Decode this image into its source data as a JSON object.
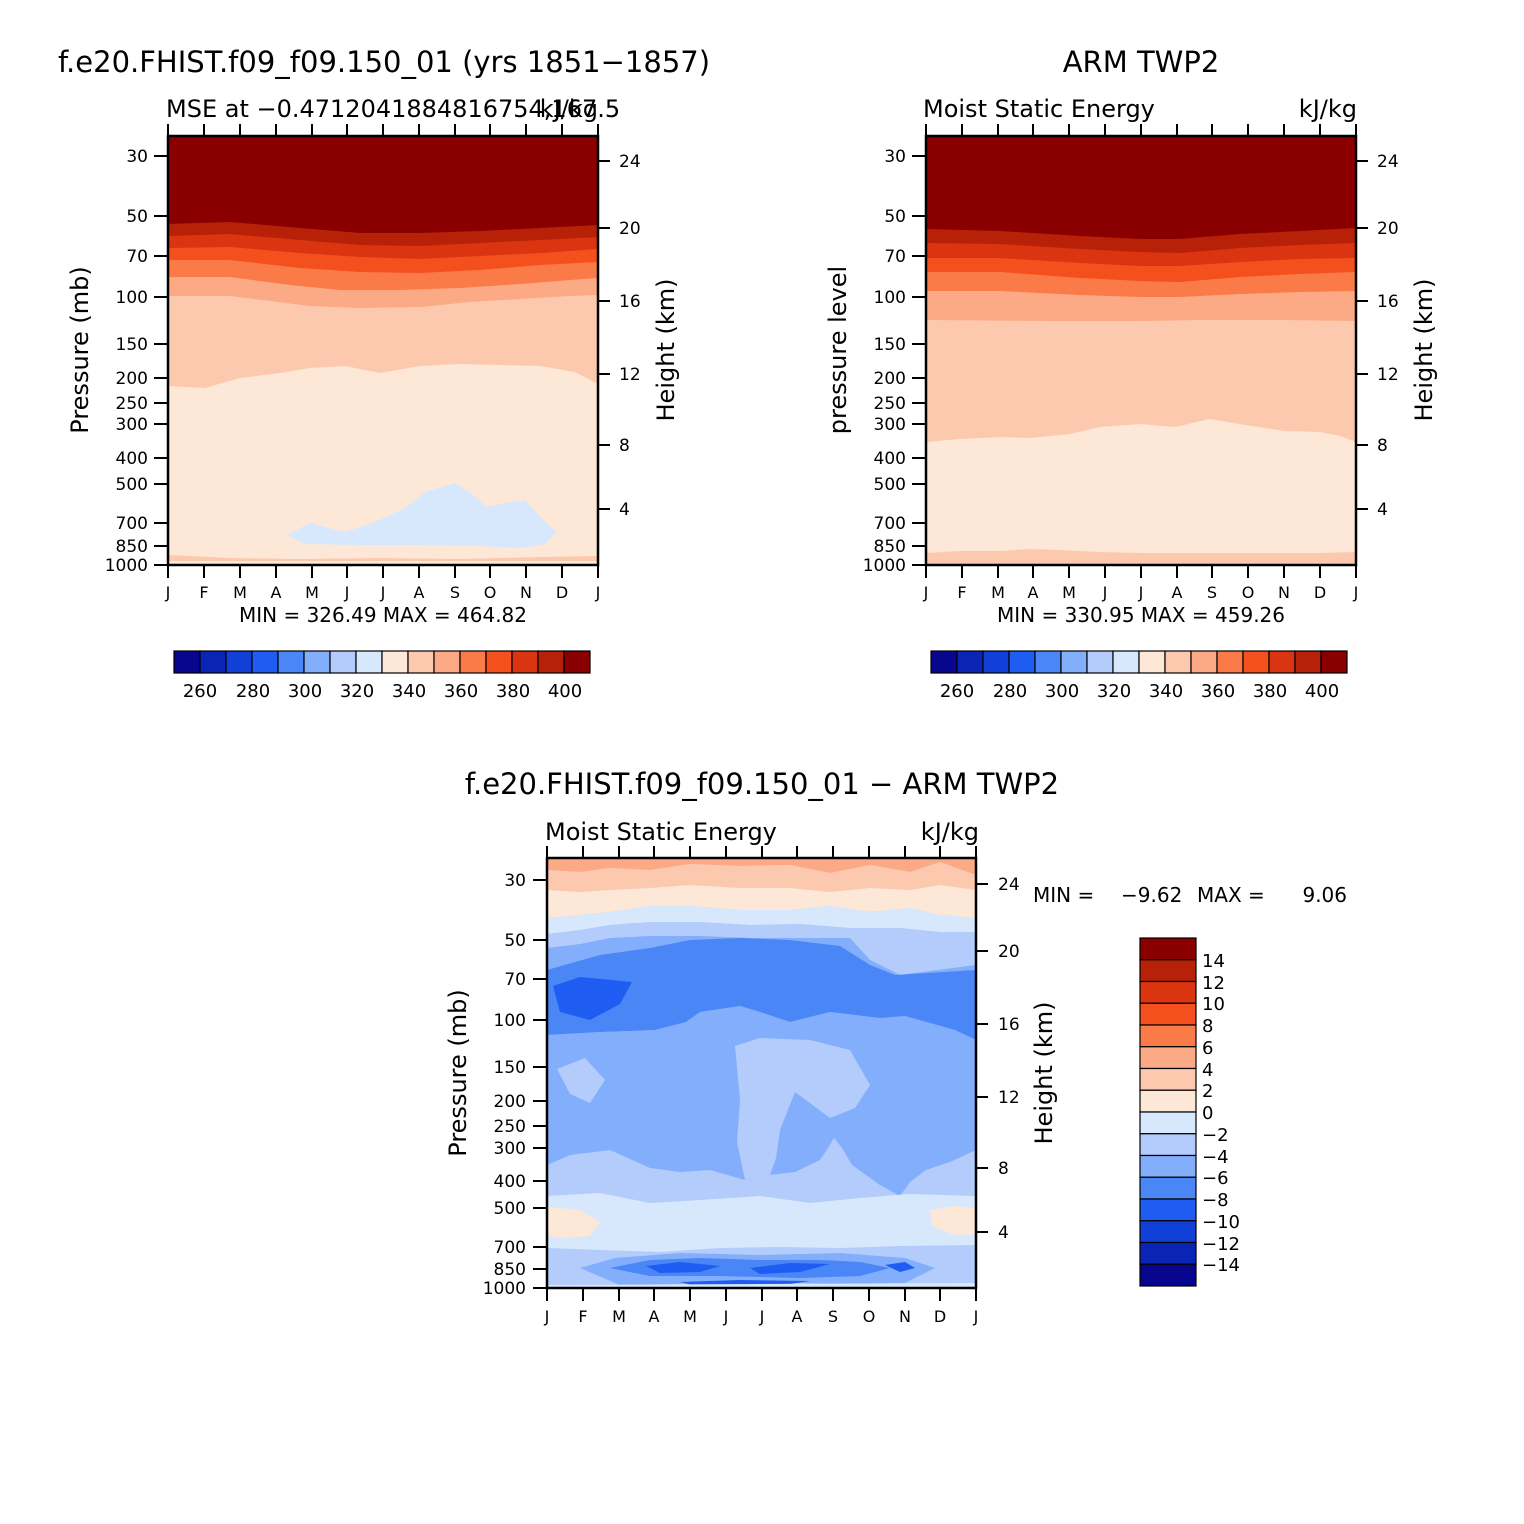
{
  "colors": {
    "scale": [
      "#08058f",
      "#0a25b5",
      "#1140d8",
      "#1e5cf2",
      "#4a86f6",
      "#82aefb",
      "#b4ccfc",
      "#d7e8fd",
      "#fde7d6",
      "#fdc9ae",
      "#fca985",
      "#fa7b47",
      "#f4501e",
      "#da3411",
      "#b72108",
      "#8a0000"
    ]
  },
  "top_left": {
    "title": "f.e20.FHIST.f09_f09.150_01 (yrs 1851-1857)",
    "subtitle_left": "MSE at -0.4712041884816754,167.5",
    "subtitle_right": "kJ/kg",
    "ylabel": "Pressure (mb)",
    "y2label": "Height (km)",
    "stats": "MIN = 326.49 MAX = 464.82"
  },
  "top_right": {
    "title": "ARM TWP2",
    "subtitle_left": "Moist Static Energy",
    "subtitle_right": "kJ/kg",
    "ylabel": "pressure level",
    "y2label": "Height (km)",
    "stats": "MIN = 330.95 MAX = 459.26"
  },
  "bottom": {
    "title": "f.e20.FHIST.f09_f09.150_01 - ARM TWP2",
    "subtitle_left": "Moist Static Energy",
    "subtitle_right": "kJ/kg",
    "ylabel": "Pressure (mb)",
    "y2label": "Height (km)",
    "stats_min_label": "MIN =",
    "stats_min": "-9.62",
    "stats_max_label": "MAX =",
    "stats_max": "9.06"
  },
  "chart_data": [
    {
      "type": "heatmap",
      "title": "f.e20.FHIST.f09_f09.150_01 (yrs 1851-1857)",
      "subtitle": "MSE at -0.4712041884816754,167.5 kJ/kg",
      "x": [
        "J",
        "F",
        "M",
        "A",
        "M",
        "J",
        "J",
        "A",
        "S",
        "O",
        "N",
        "D",
        "J"
      ],
      "y_pressure_ticks": [
        30,
        50,
        70,
        100,
        150,
        200,
        250,
        300,
        400,
        500,
        700,
        850,
        1000
      ],
      "y_height_ticks": [
        4,
        8,
        12,
        16,
        20,
        24
      ],
      "ylabel": "Pressure (mb)",
      "y2label": "Height (km)",
      "colorbar_labels": [
        260,
        280,
        300,
        320,
        340,
        360,
        380,
        400
      ],
      "min": 326.49,
      "max": 464.82
    },
    {
      "type": "heatmap",
      "title": "ARM TWP2",
      "subtitle": "Moist Static Energy kJ/kg",
      "x": [
        "J",
        "F",
        "M",
        "A",
        "M",
        "J",
        "J",
        "A",
        "S",
        "O",
        "N",
        "D",
        "J"
      ],
      "y_pressure_ticks": [
        30,
        50,
        70,
        100,
        150,
        200,
        250,
        300,
        400,
        500,
        700,
        850,
        1000
      ],
      "y_height_ticks": [
        4,
        8,
        12,
        16,
        20,
        24
      ],
      "ylabel": "pressure level",
      "y2label": "Height (km)",
      "colorbar_labels": [
        260,
        280,
        300,
        320,
        340,
        360,
        380,
        400
      ],
      "min": 330.95,
      "max": 459.26
    },
    {
      "type": "heatmap",
      "title": "f.e20.FHIST.f09_f09.150_01 - ARM TWP2",
      "subtitle": "Moist Static Energy kJ/kg",
      "x": [
        "J",
        "F",
        "M",
        "A",
        "M",
        "J",
        "J",
        "A",
        "S",
        "O",
        "N",
        "D",
        "J"
      ],
      "y_pressure_ticks": [
        30,
        50,
        70,
        100,
        150,
        200,
        250,
        300,
        400,
        500,
        700,
        850,
        1000
      ],
      "y_height_ticks": [
        4,
        8,
        12,
        16,
        20,
        24
      ],
      "ylabel": "Pressure (mb)",
      "y2label": "Height (km)",
      "colorbar_labels": [
        14,
        12,
        10,
        8,
        6,
        4,
        2,
        0,
        -2,
        -4,
        -6,
        -8,
        -10,
        -12,
        -14
      ],
      "min": -9.62,
      "max": 9.06
    }
  ]
}
